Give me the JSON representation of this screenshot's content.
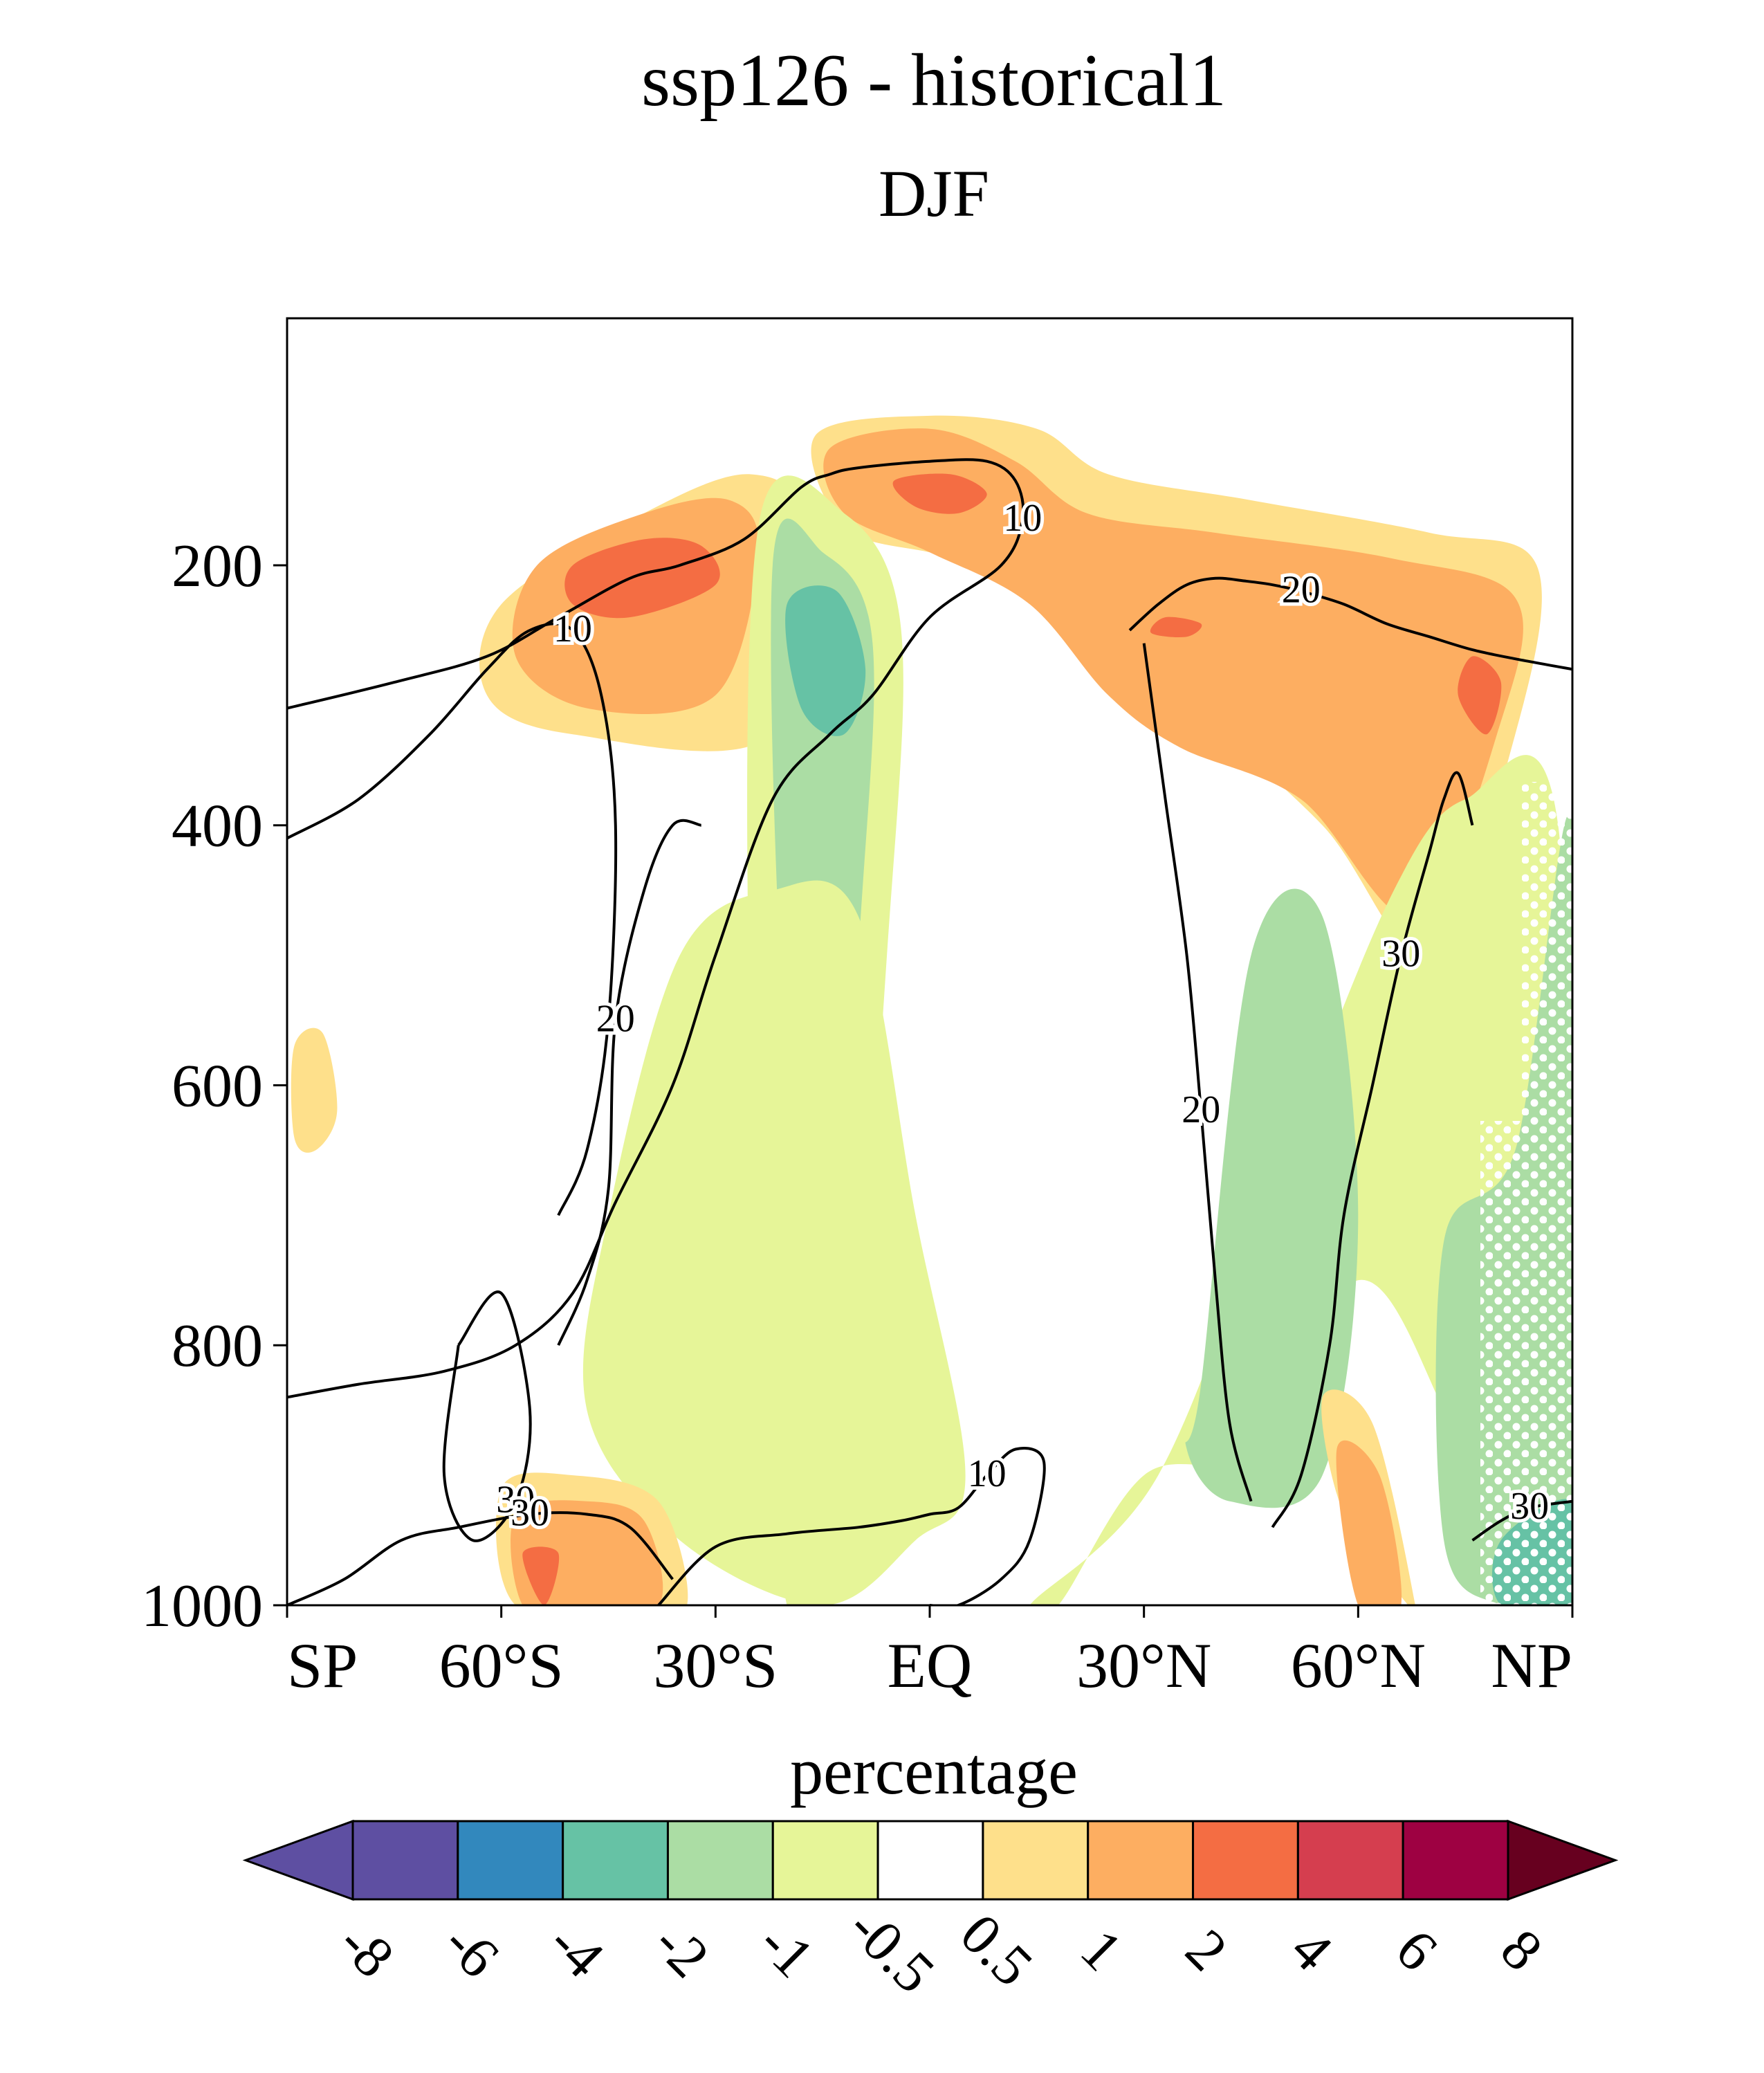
{
  "figure": {
    "title": "ssp126 - historical1",
    "subtitle": "DJF",
    "colorbar_label": "percentage"
  },
  "chart_data": {
    "type": "heatmap",
    "title": "ssp126 - historical1",
    "subtitle": "DJF",
    "x_axis": {
      "range": [
        -90,
        90
      ],
      "ticks": [
        -90,
        -60,
        -30,
        0,
        30,
        60,
        90
      ],
      "tick_labels": [
        "SP",
        "60°S",
        "30°S",
        "EQ",
        "30°N",
        "60°N",
        "NP"
      ]
    },
    "y_axis": {
      "range": [
        1000,
        10
      ],
      "ticks": [
        200,
        400,
        600,
        800,
        1000
      ],
      "tick_labels": [
        "200",
        "400",
        "600",
        "800",
        "1000"
      ],
      "reversed": true
    },
    "colorbar": {
      "label": "percentage",
      "levels": [
        -8,
        -6,
        -4,
        -2,
        -1,
        -0.5,
        0.5,
        1,
        2,
        4,
        6,
        8
      ],
      "level_labels": [
        "-8",
        "-6",
        "-4",
        "-2",
        "-1",
        "-0.5",
        "0.5",
        "1",
        "2",
        "4",
        "6",
        "8"
      ],
      "colors": [
        "#5e4fa2",
        "#5e4fa2",
        "#3288bd",
        "#66c2a5",
        "#abdda4",
        "#e6f598",
        "#ffffff",
        "#fee08b",
        "#fdae61",
        "#f46d43",
        "#d53e4f",
        "#9e0142",
        "#67001f"
      ]
    },
    "contour_labels": [
      "10",
      "10",
      "10",
      "10",
      "20",
      "20",
      "20",
      "30",
      "30",
      "30"
    ],
    "regions": [
      {
        "level": 0.5,
        "color": "#fee08b",
        "lat": [
          -60,
          -40,
          -25,
          -18,
          -22,
          -50,
          -62
        ],
        "p": [
          230,
          160,
          130,
          170,
          330,
          330,
          300
        ]
      },
      {
        "level": 1,
        "color": "#fdae61",
        "lat": [
          -55,
          -40,
          -28,
          -24,
          -30,
          -48,
          -58
        ],
        "p": [
          200,
          160,
          150,
          190,
          300,
          310,
          270
        ]
      },
      {
        "level": 2,
        "color": "#f46d43",
        "lat": [
          -50,
          -40,
          -32,
          -30,
          -42,
          -50
        ],
        "p": [
          200,
          180,
          185,
          215,
          240,
          230
        ]
      },
      {
        "level": 0.5,
        "color": "#fee08b",
        "lat": [
          -16,
          0,
          15,
          25,
          45,
          70,
          85,
          82,
          70,
          55,
          35,
          22,
          12,
          0,
          -12
        ],
        "p": [
          100,
          85,
          95,
          130,
          150,
          175,
          200,
          330,
          500,
          400,
          300,
          230,
          200,
          190,
          170
        ]
      },
      {
        "level": 1,
        "color": "#fdae61",
        "lat": [
          -14,
          0,
          12,
          22,
          40,
          65,
          82,
          80,
          68,
          52,
          35,
          25,
          14,
          0,
          -12
        ],
        "p": [
          110,
          95,
          120,
          160,
          175,
          195,
          225,
          320,
          470,
          380,
          340,
          300,
          230,
          190,
          160
        ]
      },
      {
        "level": 2,
        "color": "#f46d43",
        "lat": [
          -5,
          3,
          8,
          4,
          -2
        ],
        "p": [
          135,
          130,
          145,
          160,
          155
        ]
      },
      {
        "level": 2,
        "color": "#f46d43",
        "lat": [
          33,
          38,
          36,
          31
        ],
        "p": [
          240,
          245,
          255,
          252
        ]
      },
      {
        "level": 2,
        "color": "#f46d43",
        "lat": [
          76,
          80,
          78,
          74
        ],
        "p": [
          270,
          290,
          330,
          300
        ]
      },
      {
        "level": -0.5,
        "color": "#e6f598",
        "lat": [
          -24,
          -12,
          -4,
          -6,
          -12,
          -20,
          -25
        ],
        "p": [
          170,
          160,
          250,
          500,
          900,
          1000,
          600
        ]
      },
      {
        "level": -1,
        "color": "#abdda4",
        "lat": [
          -22,
          -15,
          -8,
          -10,
          -14,
          -20
        ],
        "p": [
          200,
          190,
          260,
          500,
          850,
          600
        ]
      },
      {
        "level": -2,
        "color": "#66c2a5",
        "lat": [
          -20,
          -13,
          -9,
          -12,
          -18
        ],
        "p": [
          230,
          220,
          280,
          330,
          310
        ]
      },
      {
        "level": -0.5,
        "color": "#e6f598",
        "lat": [
          -45,
          -35,
          -22,
          -10,
          -2,
          5,
          -2,
          -15,
          -35,
          -48
        ],
        "p": [
          700,
          500,
          450,
          470,
          700,
          900,
          950,
          1000,
          950,
          850
        ]
      },
      {
        "level": -0.5,
        "color": "#e6f598",
        "lat": [
          14,
          32,
          50,
          65,
          75,
          88,
          90,
          82,
          72,
          60,
          45,
          30,
          18
        ],
        "p": [
          1000,
          900,
          650,
          450,
          380,
          400,
          1000,
          1000,
          850,
          750,
          880,
          900,
          1000
        ]
      },
      {
        "level": -1,
        "color": "#abdda4",
        "lat": [
          38,
          45,
          55,
          60,
          55,
          42,
          36
        ],
        "p": [
          830,
          500,
          470,
          700,
          900,
          920,
          880
        ]
      },
      {
        "level": -1,
        "color": "#abdda4",
        "lat": [
          72,
          82,
          90,
          90,
          80,
          72
        ],
        "p": [
          720,
          650,
          400,
          1000,
          1000,
          950
        ]
      },
      {
        "level": -2,
        "color": "#66c2a5",
        "lat": [
          80,
          90,
          90,
          80
        ],
        "p": [
          950,
          920,
          1000,
          1000
        ]
      },
      {
        "level": 0.5,
        "color": "#fee08b",
        "lat": [
          -60,
          -50,
          -38,
          -34,
          -42,
          -58
        ],
        "p": [
          910,
          900,
          920,
          1000,
          1000,
          1000
        ]
      },
      {
        "level": 1,
        "color": "#fdae61",
        "lat": [
          -58,
          -48,
          -40,
          -38,
          -50,
          -57
        ],
        "p": [
          930,
          920,
          935,
          1000,
          1000,
          1000
        ]
      },
      {
        "level": 2,
        "color": "#f46d43",
        "lat": [
          -57,
          -52,
          -54
        ],
        "p": [
          960,
          960,
          1000
        ]
      },
      {
        "level": 0.5,
        "color": "#fee08b",
        "lat": [
          55,
          62,
          68,
          67,
          58
        ],
        "p": [
          840,
          860,
          1000,
          1000,
          930
        ]
      },
      {
        "level": 1,
        "color": "#fdae61",
        "lat": [
          57,
          63,
          66,
          60
        ],
        "p": [
          880,
          900,
          1000,
          1000
        ]
      },
      {
        "level": 0.5,
        "color": "#fee08b",
        "lat": [
          -89,
          -85,
          -83,
          -86,
          -89
        ],
        "p": [
          570,
          560,
          620,
          650,
          640
        ]
      }
    ],
    "contours": [
      {
        "label": "10",
        "lat": [
          -90,
          -75,
          -62,
          -52,
          -42,
          -35,
          -26,
          -18,
          -14,
          -10,
          0,
          8,
          12,
          13,
          10,
          0,
          -8,
          -14,
          -22,
          -30,
          -36,
          -44,
          -50,
          -58,
          -68,
          -80,
          -90
        ],
        "p": [
          310,
          290,
          270,
          240,
          210,
          200,
          180,
          140,
          130,
          125,
          120,
          120,
          135,
          165,
          200,
          240,
          300,
          330,
          380,
          500,
          600,
          690,
          760,
          800,
          820,
          830,
          840
        ]
      },
      {
        "label": "10",
        "lat": [
          -90,
          -80,
          -70,
          -62,
          -56,
          -50,
          -46,
          -44,
          -45,
          -48,
          -52
        ],
        "p": [
          410,
          380,
          330,
          280,
          250,
          250,
          300,
          400,
          550,
          650,
          700
        ]
      },
      {
        "label": "20",
        "lat": [
          -52,
          -48,
          -45,
          -44,
          -40,
          -36,
          -32
        ],
        "p": [
          800,
          750,
          680,
          550,
          450,
          400,
          400
        ]
      },
      {
        "label": "30",
        "lat": [
          -66,
          -60,
          -56,
          -58,
          -64,
          -68,
          -66
        ],
        "p": [
          800,
          760,
          850,
          920,
          950,
          900,
          800
        ]
      },
      {
        "label": "30",
        "lat": [
          -90,
          -82,
          -74,
          -66,
          -56,
          -48,
          -42,
          -36
        ],
        "p": [
          1000,
          980,
          950,
          940,
          930,
          930,
          940,
          980
        ]
      },
      {
        "label": "10",
        "lat": [
          -38,
          -30,
          -20,
          -10,
          -4,
          0,
          4,
          8,
          12,
          16,
          14,
          10,
          4,
          0
        ],
        "p": [
          1000,
          955,
          945,
          940,
          935,
          930,
          925,
          900,
          880,
          890,
          950,
          980,
          1000,
          1000
        ]
      },
      {
        "label": "20",
        "lat": [
          28,
          32,
          36,
          40,
          44,
          48,
          52,
          58,
          64,
          70,
          76,
          82,
          90
        ],
        "p": [
          250,
          230,
          215,
          210,
          212,
          215,
          220,
          230,
          245,
          255,
          265,
          272,
          280
        ]
      },
      {
        "label": "20",
        "lat": [
          30,
          31,
          33,
          36,
          38,
          40,
          42,
          45
        ],
        "p": [
          260,
          300,
          380,
          500,
          620,
          750,
          860,
          920
        ]
      },
      {
        "label": "30",
        "lat": [
          48,
          52,
          56,
          58,
          62,
          66,
          70,
          72,
          74,
          76
        ],
        "p": [
          940,
          900,
          800,
          700,
          600,
          500,
          420,
          380,
          360,
          400
        ]
      },
      {
        "label": "30",
        "lat": [
          76,
          80,
          84,
          90
        ],
        "p": [
          950,
          935,
          925,
          920
        ]
      }
    ],
    "legend_position": "bottom",
    "grid": false
  }
}
